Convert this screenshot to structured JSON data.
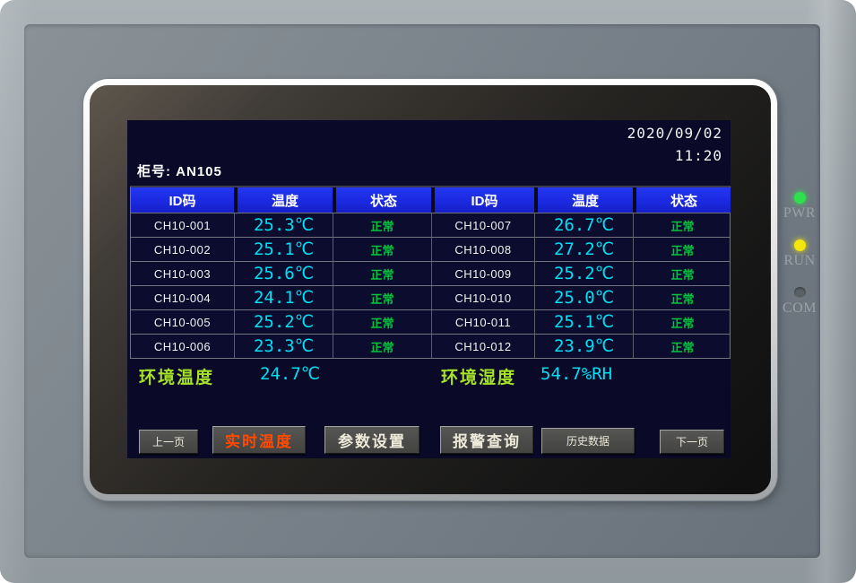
{
  "device": {
    "indicators": [
      {
        "label": "PWR",
        "state": "lit",
        "color": "#2ee04e"
      },
      {
        "label": "RUN",
        "state": "lit",
        "color": "#f2e60a"
      },
      {
        "label": "COM",
        "state": "off",
        "color": "#5a6166"
      }
    ]
  },
  "screen": {
    "datetime": {
      "date": "2020/09/02",
      "time": "11:20"
    },
    "cabinet_label": "柜号: AN105",
    "table": {
      "headers": [
        "ID码",
        "温度",
        "状态",
        "ID码",
        "温度",
        "状态"
      ],
      "rows": [
        [
          "CH10-001",
          "25.3℃",
          "正常",
          "CH10-007",
          "26.7℃",
          "正常"
        ],
        [
          "CH10-002",
          "25.1℃",
          "正常",
          "CH10-008",
          "27.2℃",
          "正常"
        ],
        [
          "CH10-003",
          "25.6℃",
          "正常",
          "CH10-009",
          "25.2℃",
          "正常"
        ],
        [
          "CH10-004",
          "24.1℃",
          "正常",
          "CH10-010",
          "25.0℃",
          "正常"
        ],
        [
          "CH10-005",
          "25.2℃",
          "正常",
          "CH10-011",
          "25.1℃",
          "正常"
        ],
        [
          "CH10-006",
          "23.3℃",
          "正常",
          "CH10-012",
          "23.9℃",
          "正常"
        ]
      ]
    },
    "ambient": {
      "temperature_label": "环境温度",
      "temperature_value": "24.7℃",
      "humidity_label": "环境湿度",
      "humidity_value": "54.7%RH"
    },
    "nav_buttons": [
      {
        "label": "上一页"
      },
      {
        "label": "实时温度"
      },
      {
        "label": "参数设置"
      },
      {
        "label": "报警查询"
      },
      {
        "label": "历史数据"
      },
      {
        "label": "下一页"
      }
    ],
    "active_button": "实时温度",
    "colors": {
      "lcd_background": "#0a0a28",
      "header_blue": "#1b2ae0",
      "temperature_cyan": "#00e0f5",
      "status_green": "#00c43c",
      "ambient_label_green": "#a6e227",
      "active_button_orange": "#ff4a00",
      "led_pwr_green": "#2ee04e",
      "led_run_yellow": "#f2e60a"
    }
  }
}
